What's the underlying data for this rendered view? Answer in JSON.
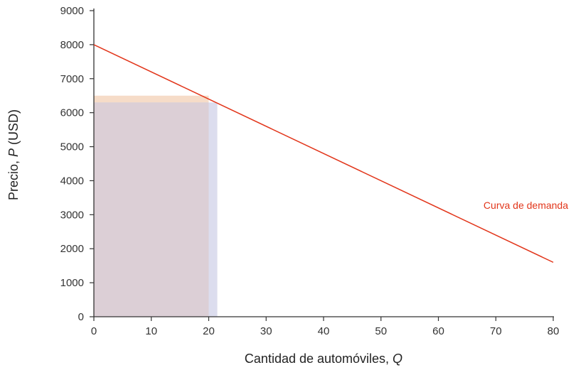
{
  "chart_data": {
    "type": "line",
    "xlabel": "Cantidad de automóviles, ",
    "xlabel_var": "Q",
    "ylabel": "Precio, ",
    "ylabel_var": "P",
    "ylabel_unit": " (USD)",
    "xlim": [
      0,
      80
    ],
    "ylim": [
      0,
      9000
    ],
    "x_ticks": [
      "0",
      "10",
      "20",
      "30",
      "40",
      "50",
      "60",
      "70",
      "80"
    ],
    "y_ticks": [
      "0",
      "1000",
      "2000",
      "3000",
      "4000",
      "5000",
      "6000",
      "7000",
      "8000",
      "9000"
    ],
    "grid": false,
    "series": [
      {
        "name": "Curva de demanda",
        "x": [
          0,
          80
        ],
        "y": [
          8000,
          1600
        ],
        "color": "#e2361b"
      }
    ],
    "rectangles": [
      {
        "x": [
          0,
          20
        ],
        "y": [
          0,
          6500
        ],
        "color": "#f6dcc8"
      },
      {
        "x": [
          0,
          21.5
        ],
        "y": [
          0,
          6300
        ],
        "color": "#dcddee"
      },
      {
        "x": [
          0,
          20
        ],
        "y": [
          0,
          6300
        ],
        "color": "#dccfd6"
      }
    ]
  }
}
